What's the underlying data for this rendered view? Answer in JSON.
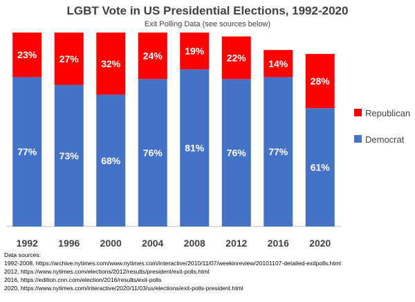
{
  "chart_data": {
    "type": "bar",
    "stacked": true,
    "title": "LGBT Vote in US Presidential Elections, 1992-2020",
    "subtitle": "Exit Polling Data (see sources below)",
    "categories": [
      "1992",
      "1996",
      "2000",
      "2004",
      "2008",
      "2012",
      "2016",
      "2020"
    ],
    "series": [
      {
        "name": "Democrat",
        "values": [
          77,
          73,
          68,
          76,
          81,
          76,
          77,
          61
        ],
        "color": "#4472C4"
      },
      {
        "name": "Republican",
        "values": [
          23,
          27,
          32,
          24,
          19,
          22,
          14,
          28
        ],
        "color": "#FF0000"
      }
    ],
    "value_labels": [
      [
        "77%",
        "73%",
        "68%",
        "76%",
        "81%",
        "76%",
        "77%",
        "61%"
      ],
      [
        "23%",
        "27%",
        "32%",
        "24%",
        "19%",
        "22%",
        "14%",
        "28%"
      ]
    ],
    "ylim": [
      0,
      100
    ],
    "grid": false,
    "legend_position": "right"
  },
  "sources": {
    "heading": "Data sources:",
    "lines": [
      "1992-2008, https://archive.nytimes.com/www.nytimes.com/interactive/2010/11/07/weekinreview/20101107-detailed-exitpolls.html",
      "2012, https://www.nytimes.com/elections/2012/results/president/exit-polls.html",
      "2016, https://edition.cnn.com/election/2016/results/exit-polls",
      "2020, https://www.nytimes.com/interactive/2020/11/03/us/elections/exit-polls-president.html"
    ]
  }
}
